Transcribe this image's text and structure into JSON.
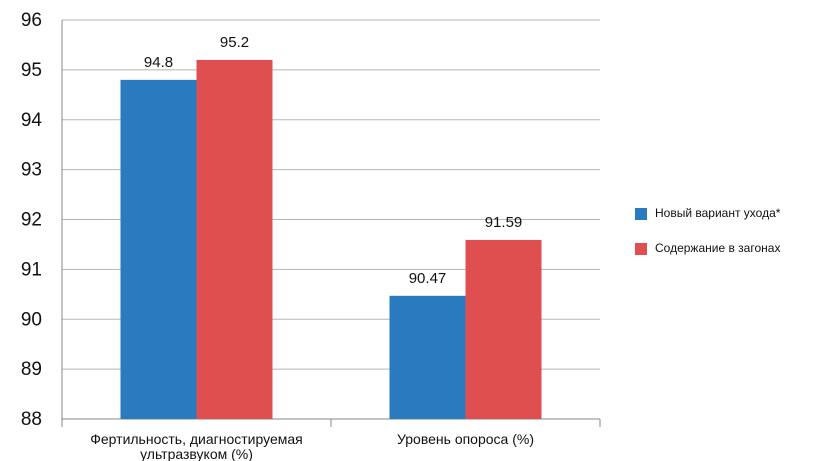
{
  "chart_data": {
    "type": "bar",
    "title": "",
    "xlabel": "",
    "ylabel": "",
    "categories": [
      "Фертильность, диагностируемая ультразвуком (%)",
      "Уровень опороса (%)"
    ],
    "category_label_lines": [
      [
        "Фертильность, диагностируемая",
        "ультразвуком (%)"
      ],
      [
        "Уровень опороса (%)"
      ]
    ],
    "series": [
      {
        "name": "Новый вариант ухода*",
        "values": [
          94.8,
          90.47
        ],
        "color": "#2a7abf"
      },
      {
        "name": "Содержание в загонах",
        "values": [
          95.2,
          91.59
        ],
        "color": "#df4f4f"
      }
    ],
    "data_labels": [
      [
        "94.8",
        "90.47"
      ],
      [
        "95.2",
        "91.59"
      ]
    ],
    "ylim": [
      88,
      96
    ],
    "yticks": [
      88,
      89,
      90,
      91,
      92,
      93,
      94,
      95,
      96
    ],
    "grid": true,
    "legend_position": "right"
  }
}
